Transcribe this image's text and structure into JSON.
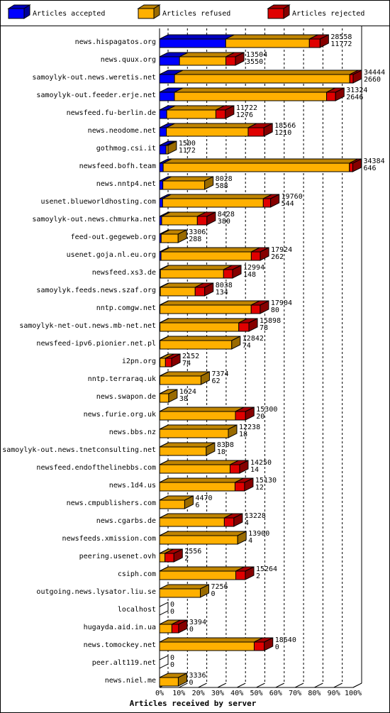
{
  "chart_data": {
    "type": "bar3d-stacked-horizontal",
    "x_label": "Articles received by server",
    "categories": [
      "news.hispagatos.org",
      "news.quux.org",
      "samoylyk-out.news.weretis.net",
      "samoylyk-out.feeder.erje.net",
      "newsfeed.fu-berlin.de",
      "news.neodome.net",
      "gothmog.csi.it",
      "newsfeed.bofh.team",
      "news.nntp4.net",
      "usenet.blueworldhosting.com",
      "samoylyk-out.news.chmurka.net",
      "feed-out.gegeweb.org",
      "usenet.goja.nl.eu.org",
      "newsfeed.xs3.de",
      "samoylyk.feeds.news.szaf.org",
      "nntp.comgw.net",
      "samoylyk-net-out.news.mb-net.net",
      "newsfeed-ipv6.pionier.net.pl",
      "i2pn.org",
      "nntp.terraraq.uk",
      "news.swapon.de",
      "news.furie.org.uk",
      "news.bbs.nz",
      "samoylyk-out.news.tnetconsulting.net",
      "newsfeed.endofthelinebbs.com",
      "news.1d4.us",
      "news.cmpublishers.com",
      "news.cgarbs.de",
      "newsfeeds.xmission.com",
      "peering.usenet.ovh",
      "csiph.com",
      "outgoing.news.lysator.liu.se",
      "localhost",
      "hugayda.aid.in.ua",
      "news.tomockey.net",
      "peer.alt119.net",
      "news.niel.me"
    ],
    "series": [
      {
        "name": "Articles accepted",
        "color": "#0000ff",
        "values": [
          11772,
          3550,
          2660,
          2646,
          1276,
          1210,
          1172,
          646,
          588,
          544,
          380,
          288,
          262,
          148,
          134,
          80,
          78,
          74,
          74,
          62,
          38,
          20,
          18,
          18,
          14,
          12,
          6,
          4,
          4,
          2,
          2,
          0,
          0,
          0,
          0,
          0,
          0
        ]
      },
      {
        "name": "Articles refused",
        "color": "#ffb000",
        "values": [
          14886,
          8254,
          31184,
          27078,
          8746,
          14556,
          328,
          33138,
          7440,
          17916,
          6348,
          3018,
          16062,
          11246,
          6204,
          16224,
          14020,
          12768,
          978,
          7312,
          1586,
          13480,
          12220,
          8290,
          12536,
          13418,
          4464,
          11524,
          13896,
          954,
          13562,
          7256,
          0,
          2194,
          16840,
          0,
          3336
        ]
      },
      {
        "name": "Articles rejected",
        "color": "#e00000",
        "values": [
          1900,
          1700,
          600,
          1600,
          1700,
          2800,
          0,
          600,
          0,
          1300,
          1700,
          0,
          1600,
          1600,
          1700,
          1600,
          1800,
          0,
          1100,
          0,
          0,
          1800,
          0,
          0,
          1700,
          1700,
          0,
          1700,
          0,
          1600,
          1700,
          0,
          0,
          1200,
          1800,
          0,
          0
        ]
      }
    ],
    "totals": [
      28558,
      13504,
      34444,
      31324,
      11722,
      18566,
      1500,
      34384,
      8028,
      19760,
      8428,
      3306,
      17924,
      12994,
      8038,
      17904,
      15898,
      12842,
      2152,
      7374,
      1624,
      15300,
      12238,
      8308,
      14250,
      15130,
      4470,
      13228,
      13900,
      2556,
      15264,
      7256,
      0,
      3394,
      18640,
      0,
      3336
    ],
    "xlim": [
      0,
      34444
    ],
    "xticks": [
      {
        "value": 0,
        "label": "0%"
      },
      {
        "value": 3444.4,
        "label": "10%"
      },
      {
        "value": 6888.8,
        "label": "20%"
      },
      {
        "value": 10333.2,
        "label": "30%"
      },
      {
        "value": 13777.6,
        "label": "40%"
      },
      {
        "value": 17222,
        "label": "50%"
      },
      {
        "value": 20666.4,
        "label": "60%"
      },
      {
        "value": 24110.8,
        "label": "70%"
      },
      {
        "value": 27555.2,
        "label": "80%"
      },
      {
        "value": 30999.6,
        "label": "90%"
      },
      {
        "value": 34444,
        "label": "100%"
      }
    ],
    "grid": true
  }
}
